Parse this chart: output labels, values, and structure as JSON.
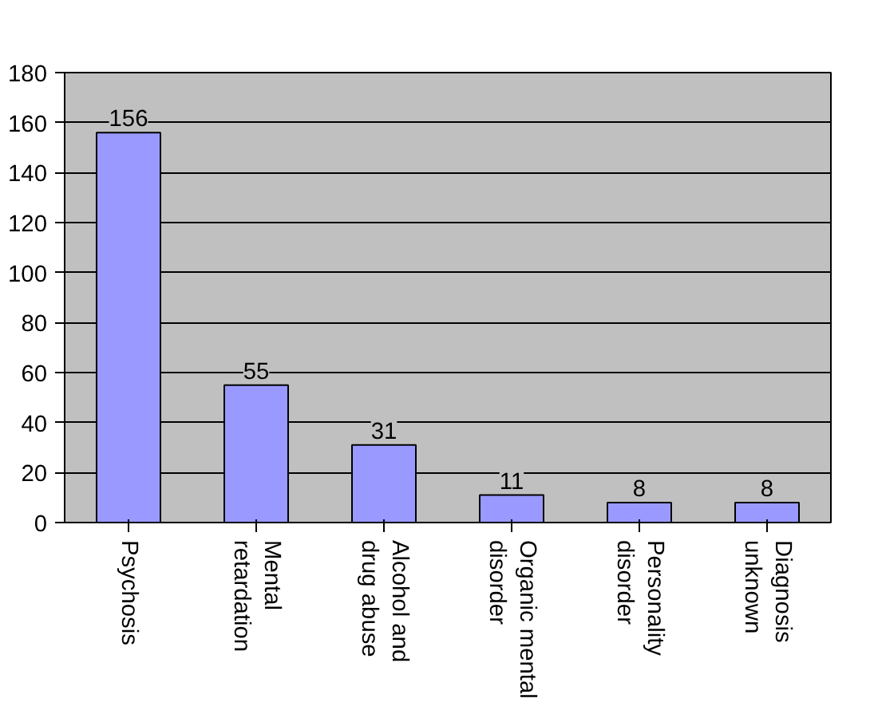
{
  "chart_data": {
    "type": "bar",
    "categories": [
      "Psychosis",
      "Mental\nretardation",
      "Alcohol and\ndrug abuse",
      "Organic mental\ndisorder",
      "Personality\ndisorder",
      "Diagnosis\nunknown"
    ],
    "values": [
      156,
      55,
      31,
      11,
      8,
      8
    ],
    "color": "#9999ff",
    "ylim": [
      0,
      180
    ],
    "yticks": [
      0,
      20,
      40,
      60,
      80,
      100,
      120,
      140,
      160,
      180
    ],
    "grid": "y",
    "data_labels": true
  }
}
